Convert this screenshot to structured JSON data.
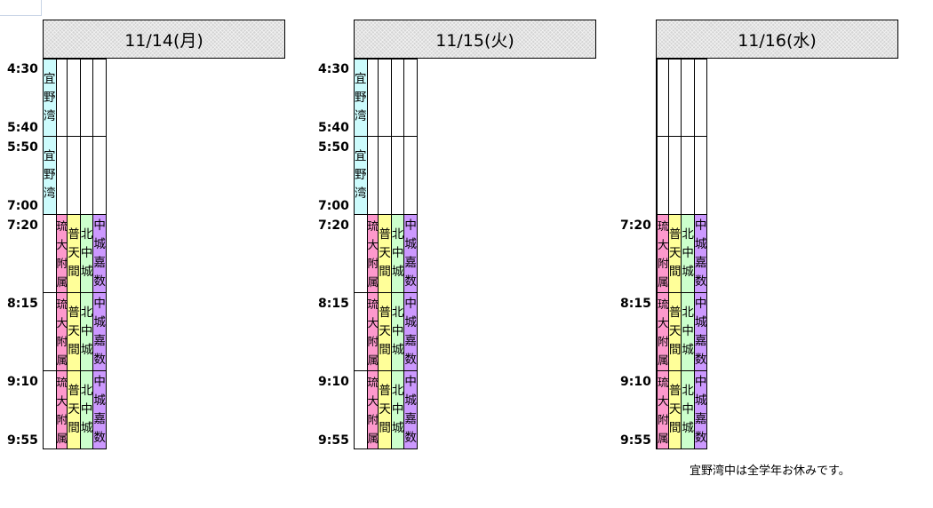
{
  "days": [
    {
      "date": "11/14(月)",
      "times": [
        "4:30",
        "5:40",
        "5:50",
        "7:00",
        "7:20",
        "8:15",
        "9:10",
        "9:55"
      ],
      "rows": [
        [
          {
            "text": "宜野湾",
            "color": "#ccfbfc"
          },
          {
            "text": "",
            "color": "#ffffff"
          },
          {
            "text": "",
            "color": "#ffffff"
          },
          {
            "text": "",
            "color": "#ffffff"
          },
          {
            "text": "",
            "color": "#ffffff"
          }
        ],
        [
          {
            "text": "宜野湾",
            "color": "#ccfbfc"
          },
          {
            "text": "",
            "color": "#ffffff"
          },
          {
            "text": "",
            "color": "#ffffff"
          },
          {
            "text": "",
            "color": "#ffffff"
          },
          {
            "text": "",
            "color": "#ffffff"
          }
        ],
        [
          {
            "text": "",
            "color": "#ffffff"
          },
          {
            "text": "琉大附属",
            "color": "#fd99cc"
          },
          {
            "text": "普天間",
            "color": "#ffff99"
          },
          {
            "text": "北中城",
            "color": "#ccffcc"
          },
          {
            "text": "中城\n嘉数",
            "color": "#cc99fe"
          }
        ],
        [
          {
            "text": "",
            "color": "#ffffff"
          },
          {
            "text": "琉大附属",
            "color": "#fd99cc"
          },
          {
            "text": "普天間",
            "color": "#ffff99"
          },
          {
            "text": "北中城",
            "color": "#ccffcc"
          },
          {
            "text": "中城\n嘉数",
            "color": "#cc99fe"
          }
        ],
        [
          {
            "text": "",
            "color": "#ffffff"
          },
          {
            "text": "琉大附属",
            "color": "#fd99cc"
          },
          {
            "text": "普天間",
            "color": "#ffff99"
          },
          {
            "text": "北中城",
            "color": "#ccffcc"
          },
          {
            "text": "中城\n嘉数",
            "color": "#cc99fe"
          }
        ]
      ]
    },
    {
      "date": "11/15(火)",
      "times": [
        "4:30",
        "5:40",
        "5:50",
        "7:00",
        "7:20",
        "8:15",
        "9:10",
        "9:55"
      ],
      "rows": [
        [
          {
            "text": "宜野湾",
            "color": "#ccfbfc"
          },
          {
            "text": "",
            "color": "#ffffff"
          },
          {
            "text": "",
            "color": "#ffffff"
          },
          {
            "text": "",
            "color": "#ffffff"
          },
          {
            "text": "",
            "color": "#ffffff"
          }
        ],
        [
          {
            "text": "宜野湾",
            "color": "#ccfbfc"
          },
          {
            "text": "",
            "color": "#ffffff"
          },
          {
            "text": "",
            "color": "#ffffff"
          },
          {
            "text": "",
            "color": "#ffffff"
          },
          {
            "text": "",
            "color": "#ffffff"
          }
        ],
        [
          {
            "text": "",
            "color": "#ffffff"
          },
          {
            "text": "琉大附属",
            "color": "#fd99cc"
          },
          {
            "text": "普天間",
            "color": "#ffff99"
          },
          {
            "text": "北中城",
            "color": "#ccffcc"
          },
          {
            "text": "中城\n嘉数",
            "color": "#cc99fe"
          }
        ],
        [
          {
            "text": "",
            "color": "#ffffff"
          },
          {
            "text": "琉大附属",
            "color": "#fd99cc"
          },
          {
            "text": "普天間",
            "color": "#ffff99"
          },
          {
            "text": "北中城",
            "color": "#ccffcc"
          },
          {
            "text": "中城\n嘉数",
            "color": "#cc99fe"
          }
        ],
        [
          {
            "text": "",
            "color": "#ffffff"
          },
          {
            "text": "琉大附属",
            "color": "#fd99cc"
          },
          {
            "text": "普天間",
            "color": "#ffff99"
          },
          {
            "text": "北中城",
            "color": "#ccffcc"
          },
          {
            "text": "中城\n嘉数",
            "color": "#cc99fe"
          }
        ]
      ]
    },
    {
      "date": "11/16(水)",
      "times": [
        "",
        "",
        "",
        "",
        "7:20",
        "8:15",
        "9:10",
        "9:55"
      ],
      "rows": [
        [
          {
            "text": "",
            "color": "#ffffff"
          },
          {
            "text": "",
            "color": "#ffffff"
          },
          {
            "text": "",
            "color": "#ffffff"
          },
          {
            "text": "",
            "color": "#ffffff"
          },
          {
            "text": "",
            "color": "#ffffff"
          }
        ],
        [
          {
            "text": "",
            "color": "#ffffff"
          },
          {
            "text": "",
            "color": "#ffffff"
          },
          {
            "text": "",
            "color": "#ffffff"
          },
          {
            "text": "",
            "color": "#ffffff"
          },
          {
            "text": "",
            "color": "#ffffff"
          }
        ],
        [
          {
            "text": "",
            "color": "#ffffff"
          },
          {
            "text": "琉大附属",
            "color": "#fd99cc"
          },
          {
            "text": "普天間",
            "color": "#ffff99"
          },
          {
            "text": "北中城",
            "color": "#ccffcc"
          },
          {
            "text": "中城\n嘉数",
            "color": "#cc99fe"
          }
        ],
        [
          {
            "text": "",
            "color": "#ffffff"
          },
          {
            "text": "琉大附属",
            "color": "#fd99cc"
          },
          {
            "text": "普天間",
            "color": "#ffff99"
          },
          {
            "text": "北中城",
            "color": "#ccffcc"
          },
          {
            "text": "中城\n嘉数",
            "color": "#cc99fe"
          }
        ],
        [
          {
            "text": "",
            "color": "#ffffff"
          },
          {
            "text": "琉大附属",
            "color": "#fd99cc"
          },
          {
            "text": "普天間",
            "color": "#ffff99"
          },
          {
            "text": "北中城",
            "color": "#ccffcc"
          },
          {
            "text": "中城\n嘉数",
            "color": "#cc99fe"
          }
        ]
      ]
    }
  ],
  "note": "宜野湾中は全学年お休みです。"
}
